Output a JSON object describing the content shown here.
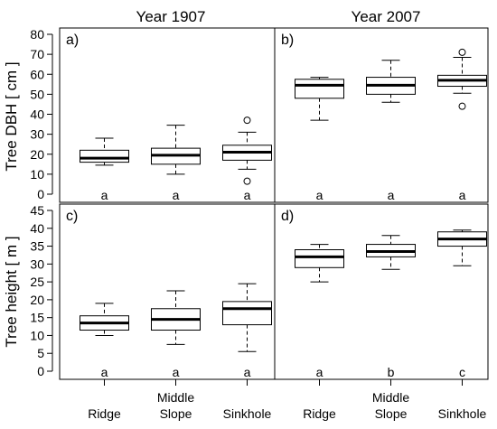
{
  "chart_data": {
    "type": "boxplot",
    "column_titles": [
      "Year 1907",
      "Year 2007"
    ],
    "row_ylabels": [
      "Tree DBH [ cm ]",
      "Tree height [ m ]"
    ],
    "categories": [
      {
        "line1": "Ridge",
        "line2": ""
      },
      {
        "line1": "Middle",
        "line2": "Slope"
      },
      {
        "line1": "Sinkhole",
        "line2": ""
      }
    ],
    "rows": [
      {
        "ylim": [
          0,
          80
        ],
        "ticks": [
          0,
          10,
          20,
          30,
          40,
          50,
          60,
          70,
          80
        ]
      },
      {
        "ylim": [
          0,
          45
        ],
        "ticks": [
          0,
          5,
          10,
          15,
          20,
          25,
          30,
          35,
          40,
          45
        ]
      }
    ],
    "panels": [
      {
        "label": "a)",
        "row": 0,
        "col": 0,
        "boxes": [
          {
            "whisker_low": 14.5,
            "q1": 16,
            "median": 18,
            "q3": 22,
            "whisker_high": 28,
            "outliers": []
          },
          {
            "whisker_low": 10,
            "q1": 15,
            "median": 19.5,
            "q3": 23,
            "whisker_high": 34.5,
            "outliers": []
          },
          {
            "whisker_low": 12.5,
            "q1": 17,
            "median": 21,
            "q3": 24.5,
            "whisker_high": 31,
            "outliers": [
              37,
              6.5
            ]
          }
        ],
        "letters": [
          "a",
          "a",
          "a"
        ]
      },
      {
        "label": "b)",
        "row": 0,
        "col": 1,
        "boxes": [
          {
            "whisker_low": 37,
            "q1": 48,
            "median": 54.5,
            "q3": 57.5,
            "whisker_high": 58.5,
            "outliers": []
          },
          {
            "whisker_low": 46,
            "q1": 50,
            "median": 54.5,
            "q3": 58.5,
            "whisker_high": 67,
            "outliers": []
          },
          {
            "whisker_low": 50.5,
            "q1": 54,
            "median": 57,
            "q3": 59.5,
            "whisker_high": 68.5,
            "outliers": [
              71,
              44
            ]
          }
        ],
        "letters": [
          "a",
          "a",
          "a"
        ]
      },
      {
        "label": "c)",
        "row": 1,
        "col": 0,
        "boxes": [
          {
            "whisker_low": 10,
            "q1": 11.5,
            "median": 13.5,
            "q3": 15.5,
            "whisker_high": 19,
            "outliers": []
          },
          {
            "whisker_low": 7.5,
            "q1": 11.5,
            "median": 14.5,
            "q3": 17.5,
            "whisker_high": 22.5,
            "outliers": []
          },
          {
            "whisker_low": 5.5,
            "q1": 13,
            "median": 17.5,
            "q3": 19.5,
            "whisker_high": 24.5,
            "outliers": []
          }
        ],
        "letters": [
          "a",
          "a",
          "a"
        ]
      },
      {
        "label": "d)",
        "row": 1,
        "col": 1,
        "boxes": [
          {
            "whisker_low": 25,
            "q1": 29,
            "median": 32,
            "q3": 34,
            "whisker_high": 35.5,
            "outliers": []
          },
          {
            "whisker_low": 28.5,
            "q1": 32,
            "median": 33.5,
            "q3": 35.5,
            "whisker_high": 38,
            "outliers": []
          },
          {
            "whisker_low": 29.5,
            "q1": 35,
            "median": 37,
            "q3": 39,
            "whisker_high": 39.5,
            "outliers": []
          }
        ],
        "letters": [
          "a",
          "b",
          "c"
        ]
      }
    ],
    "grid": false,
    "legend": "none"
  }
}
